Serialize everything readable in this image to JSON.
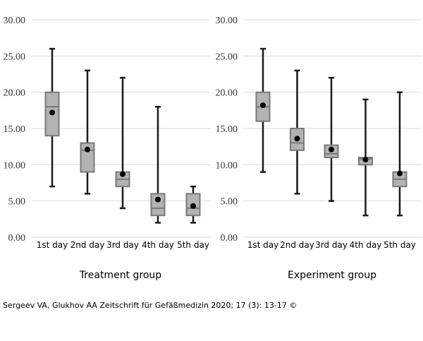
{
  "colors": {
    "box_fill": "#b3b3b3",
    "box_stroke": "#7a7a7a",
    "whisker": "#1a1a1a",
    "mean_marker": "#000000",
    "grid": "#d9d9d9"
  },
  "chart_data": [
    {
      "type": "box",
      "title": "Treatment group",
      "ylim": [
        0,
        30
      ],
      "yticks": [
        "0.00",
        "5.00",
        "10.00",
        "15.00",
        "20.00",
        "25.00",
        "30.00"
      ],
      "categories": [
        "1st day",
        "2nd day",
        "3rd day",
        "4th day",
        "5th day"
      ],
      "boxes": [
        {
          "min": 7,
          "q1": 14,
          "median": 18,
          "q3": 20,
          "max": 26,
          "mean": 17.2
        },
        {
          "min": 6,
          "q1": 9,
          "median": 12,
          "q3": 13,
          "max": 23,
          "mean": 12.1
        },
        {
          "min": 4,
          "q1": 7,
          "median": 8,
          "q3": 9,
          "max": 22,
          "mean": 8.7
        },
        {
          "min": 2,
          "q1": 3,
          "median": 4,
          "q3": 6,
          "max": 18,
          "mean": 5.2
        },
        {
          "min": 2,
          "q1": 3,
          "median": 4,
          "q3": 6,
          "max": 7,
          "mean": 4.3
        }
      ]
    },
    {
      "type": "box",
      "title": "Experiment group",
      "ylim": [
        0,
        30
      ],
      "yticks": [
        "0.00",
        "5.00",
        "10.00",
        "15.00",
        "20.00",
        "25.00",
        "30.00"
      ],
      "categories": [
        "1st day",
        "2nd day",
        "3rd day",
        "4th day",
        "5th day"
      ],
      "boxes": [
        {
          "min": 9,
          "q1": 16,
          "median": 18,
          "q3": 20,
          "max": 26,
          "mean": 18.2
        },
        {
          "min": 6,
          "q1": 12,
          "median": 13,
          "q3": 15,
          "max": 23,
          "mean": 13.6
        },
        {
          "min": 5,
          "q1": 11,
          "median": 11.5,
          "q3": 12.7,
          "max": 22,
          "mean": 12.1
        },
        {
          "min": 3,
          "q1": 10,
          "median": 10.8,
          "q3": 11,
          "max": 19,
          "mean": 10.7
        },
        {
          "min": 3,
          "q1": 7,
          "median": 8,
          "q3": 9,
          "max": 20,
          "mean": 8.8
        }
      ]
    }
  ],
  "caption": "Sergeev VA, Glukhov AA Zeitschrift für Gefäßmedizin 2020; 17 (3): 13-17 ©"
}
